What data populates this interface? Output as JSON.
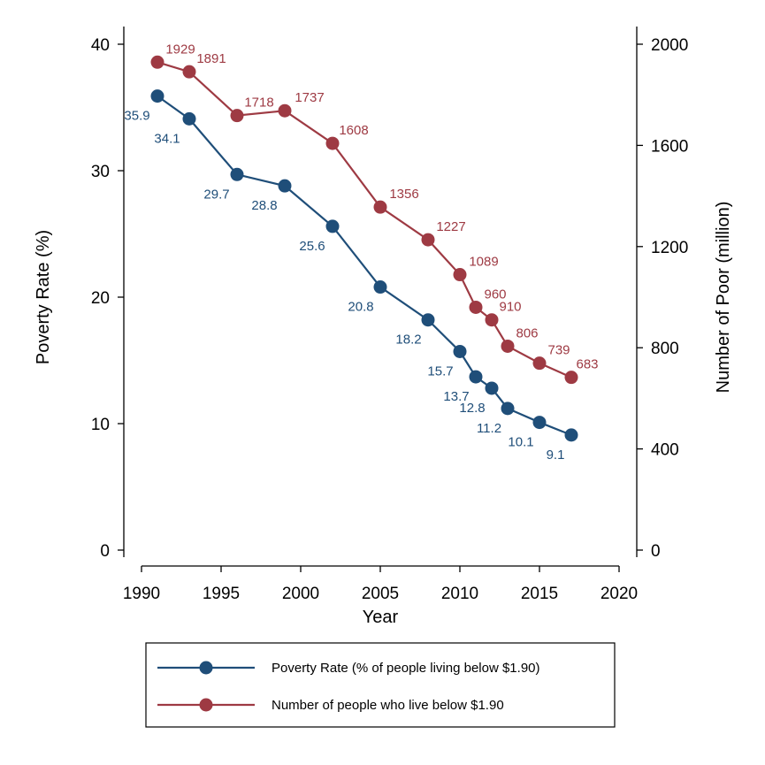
{
  "chart_data": {
    "type": "line",
    "xlabel": "Year",
    "ylabel_left": "Poverty Rate (%)",
    "ylabel_right": "Number of Poor (million)",
    "xlim": [
      1990,
      2020
    ],
    "ylim_left": [
      0,
      40
    ],
    "ylim_right": [
      0,
      2000
    ],
    "x_ticks": [
      "1990",
      "1995",
      "2000",
      "2005",
      "2010",
      "2015",
      "2020"
    ],
    "y_ticks_left": [
      "0",
      "10",
      "20",
      "30",
      "40"
    ],
    "y_ticks_right": [
      "0",
      "400",
      "800",
      "1200",
      "1600",
      "2000"
    ],
    "grid": false,
    "legend_position": "bottom",
    "x": [
      1991,
      1993,
      1996,
      1999,
      2002,
      2005,
      2008,
      2010,
      2011,
      2012,
      2013,
      2015,
      2017
    ],
    "series": [
      {
        "name": "Poverty Rate (% of people living below $1.90)",
        "axis": "left",
        "color": "#1f4e79",
        "values": [
          35.9,
          34.1,
          29.7,
          28.8,
          25.6,
          20.8,
          18.2,
          15.7,
          13.7,
          12.8,
          11.2,
          10.1,
          9.1
        ],
        "labels": [
          "35.9",
          "34.1",
          "29.7",
          "28.8",
          "25.6",
          "20.8",
          "18.2",
          "15.7",
          "13.7",
          "12.8",
          "11.2",
          "10.1",
          "9.1"
        ]
      },
      {
        "name": "Number of people who live below $1.90",
        "axis": "right",
        "color": "#9e3a43",
        "values": [
          1929,
          1891,
          1718,
          1737,
          1608,
          1356,
          1227,
          1089,
          960,
          910,
          806,
          739,
          683
        ],
        "labels": [
          "1929",
          "1891",
          "1718",
          "1737",
          "1608",
          "1356",
          "1227",
          "1089",
          "960",
          "910",
          "806",
          "739",
          "683"
        ]
      }
    ]
  }
}
